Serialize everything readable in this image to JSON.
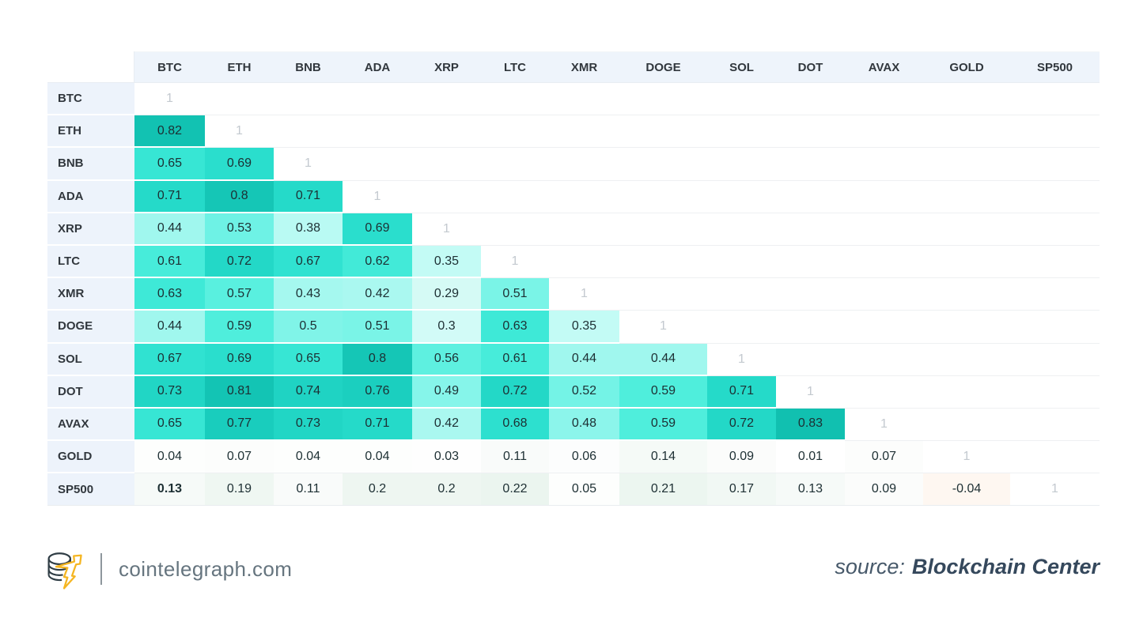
{
  "chart_data": {
    "type": "heatmap",
    "title": "",
    "columns": [
      "BTC",
      "ETH",
      "BNB",
      "ADA",
      "XRP",
      "LTC",
      "XMR",
      "DOGE",
      "SOL",
      "DOT",
      "AVAX",
      "GOLD",
      "SP500"
    ],
    "diagonal_value": "1",
    "rows": [
      {
        "label": "BTC",
        "values": [
          "1"
        ]
      },
      {
        "label": "ETH",
        "values": [
          "0.82",
          "1"
        ]
      },
      {
        "label": "BNB",
        "values": [
          "0.65",
          "0.69",
          "1"
        ]
      },
      {
        "label": "ADA",
        "values": [
          "0.71",
          "0.8",
          "0.71",
          "1"
        ]
      },
      {
        "label": "XRP",
        "values": [
          "0.44",
          "0.53",
          "0.38",
          "0.69",
          "1"
        ]
      },
      {
        "label": "LTC",
        "values": [
          "0.61",
          "0.72",
          "0.67",
          "0.62",
          "0.35",
          "1"
        ]
      },
      {
        "label": "XMR",
        "values": [
          "0.63",
          "0.57",
          "0.43",
          "0.42",
          "0.29",
          "0.51",
          "1"
        ]
      },
      {
        "label": "DOGE",
        "values": [
          "0.44",
          "0.59",
          "0.5",
          "0.51",
          "0.3",
          "0.63",
          "0.35",
          "1"
        ]
      },
      {
        "label": "SOL",
        "values": [
          "0.67",
          "0.69",
          "0.65",
          "0.8",
          "0.56",
          "0.61",
          "0.44",
          "0.44",
          "1"
        ]
      },
      {
        "label": "DOT",
        "values": [
          "0.73",
          "0.81",
          "0.74",
          "0.76",
          "0.49",
          "0.72",
          "0.52",
          "0.59",
          "0.71",
          "1"
        ]
      },
      {
        "label": "AVAX",
        "values": [
          "0.65",
          "0.77",
          "0.73",
          "0.71",
          "0.42",
          "0.68",
          "0.48",
          "0.59",
          "0.72",
          "0.83",
          "1"
        ]
      },
      {
        "label": "GOLD",
        "values": [
          "0.04",
          "0.07",
          "0.04",
          "0.04",
          "0.03",
          "0.11",
          "0.06",
          "0.14",
          "0.09",
          "0.01",
          "0.07",
          "1"
        ]
      },
      {
        "label": "SP500",
        "values": [
          "0.13",
          "0.19",
          "0.11",
          "0.2",
          "0.2",
          "0.22",
          "0.05",
          "0.21",
          "0.17",
          "0.13",
          "0.09",
          "-0.04",
          "1"
        ]
      }
    ],
    "bold_cells": [
      {
        "row": "SP500",
        "col": "BTC"
      }
    ]
  },
  "footer": {
    "brand_domain": "cointelegraph.com",
    "source_label": "source:",
    "source_name": "Blockchain Center"
  },
  "colors": {
    "accent_teal_max": "#0ab3a2",
    "header_bg": "#eef4fb",
    "row_label_bg": "#edf3fb",
    "diagonal_text": "#c3c9cf",
    "negative_tint": "#f6ad74",
    "logo_yellow": "#f5b623",
    "logo_dark": "#2f3d45",
    "brand_text": "#66757f",
    "source_text": "#35485c",
    "positive_scale": [
      [
        0.0,
        "#ffffff"
      ],
      [
        0.1,
        "#fafcfb"
      ],
      [
        0.15,
        "#f4f9f6"
      ],
      [
        0.22,
        "#ebf5ef"
      ],
      [
        0.26,
        "#def6f0"
      ],
      [
        0.3,
        "#d2fbf7"
      ],
      [
        0.36,
        "#c0fbf4"
      ],
      [
        0.42,
        "#aaf8f0"
      ],
      [
        0.47,
        "#92f6ec"
      ],
      [
        0.52,
        "#74f3e6"
      ],
      [
        0.58,
        "#53efdd"
      ],
      [
        0.64,
        "#3ae8d6"
      ],
      [
        0.7,
        "#27dccb"
      ],
      [
        0.76,
        "#1bcfbf"
      ],
      [
        0.82,
        "#12c2b2"
      ],
      [
        0.9,
        "#0ab3a2"
      ]
    ]
  }
}
